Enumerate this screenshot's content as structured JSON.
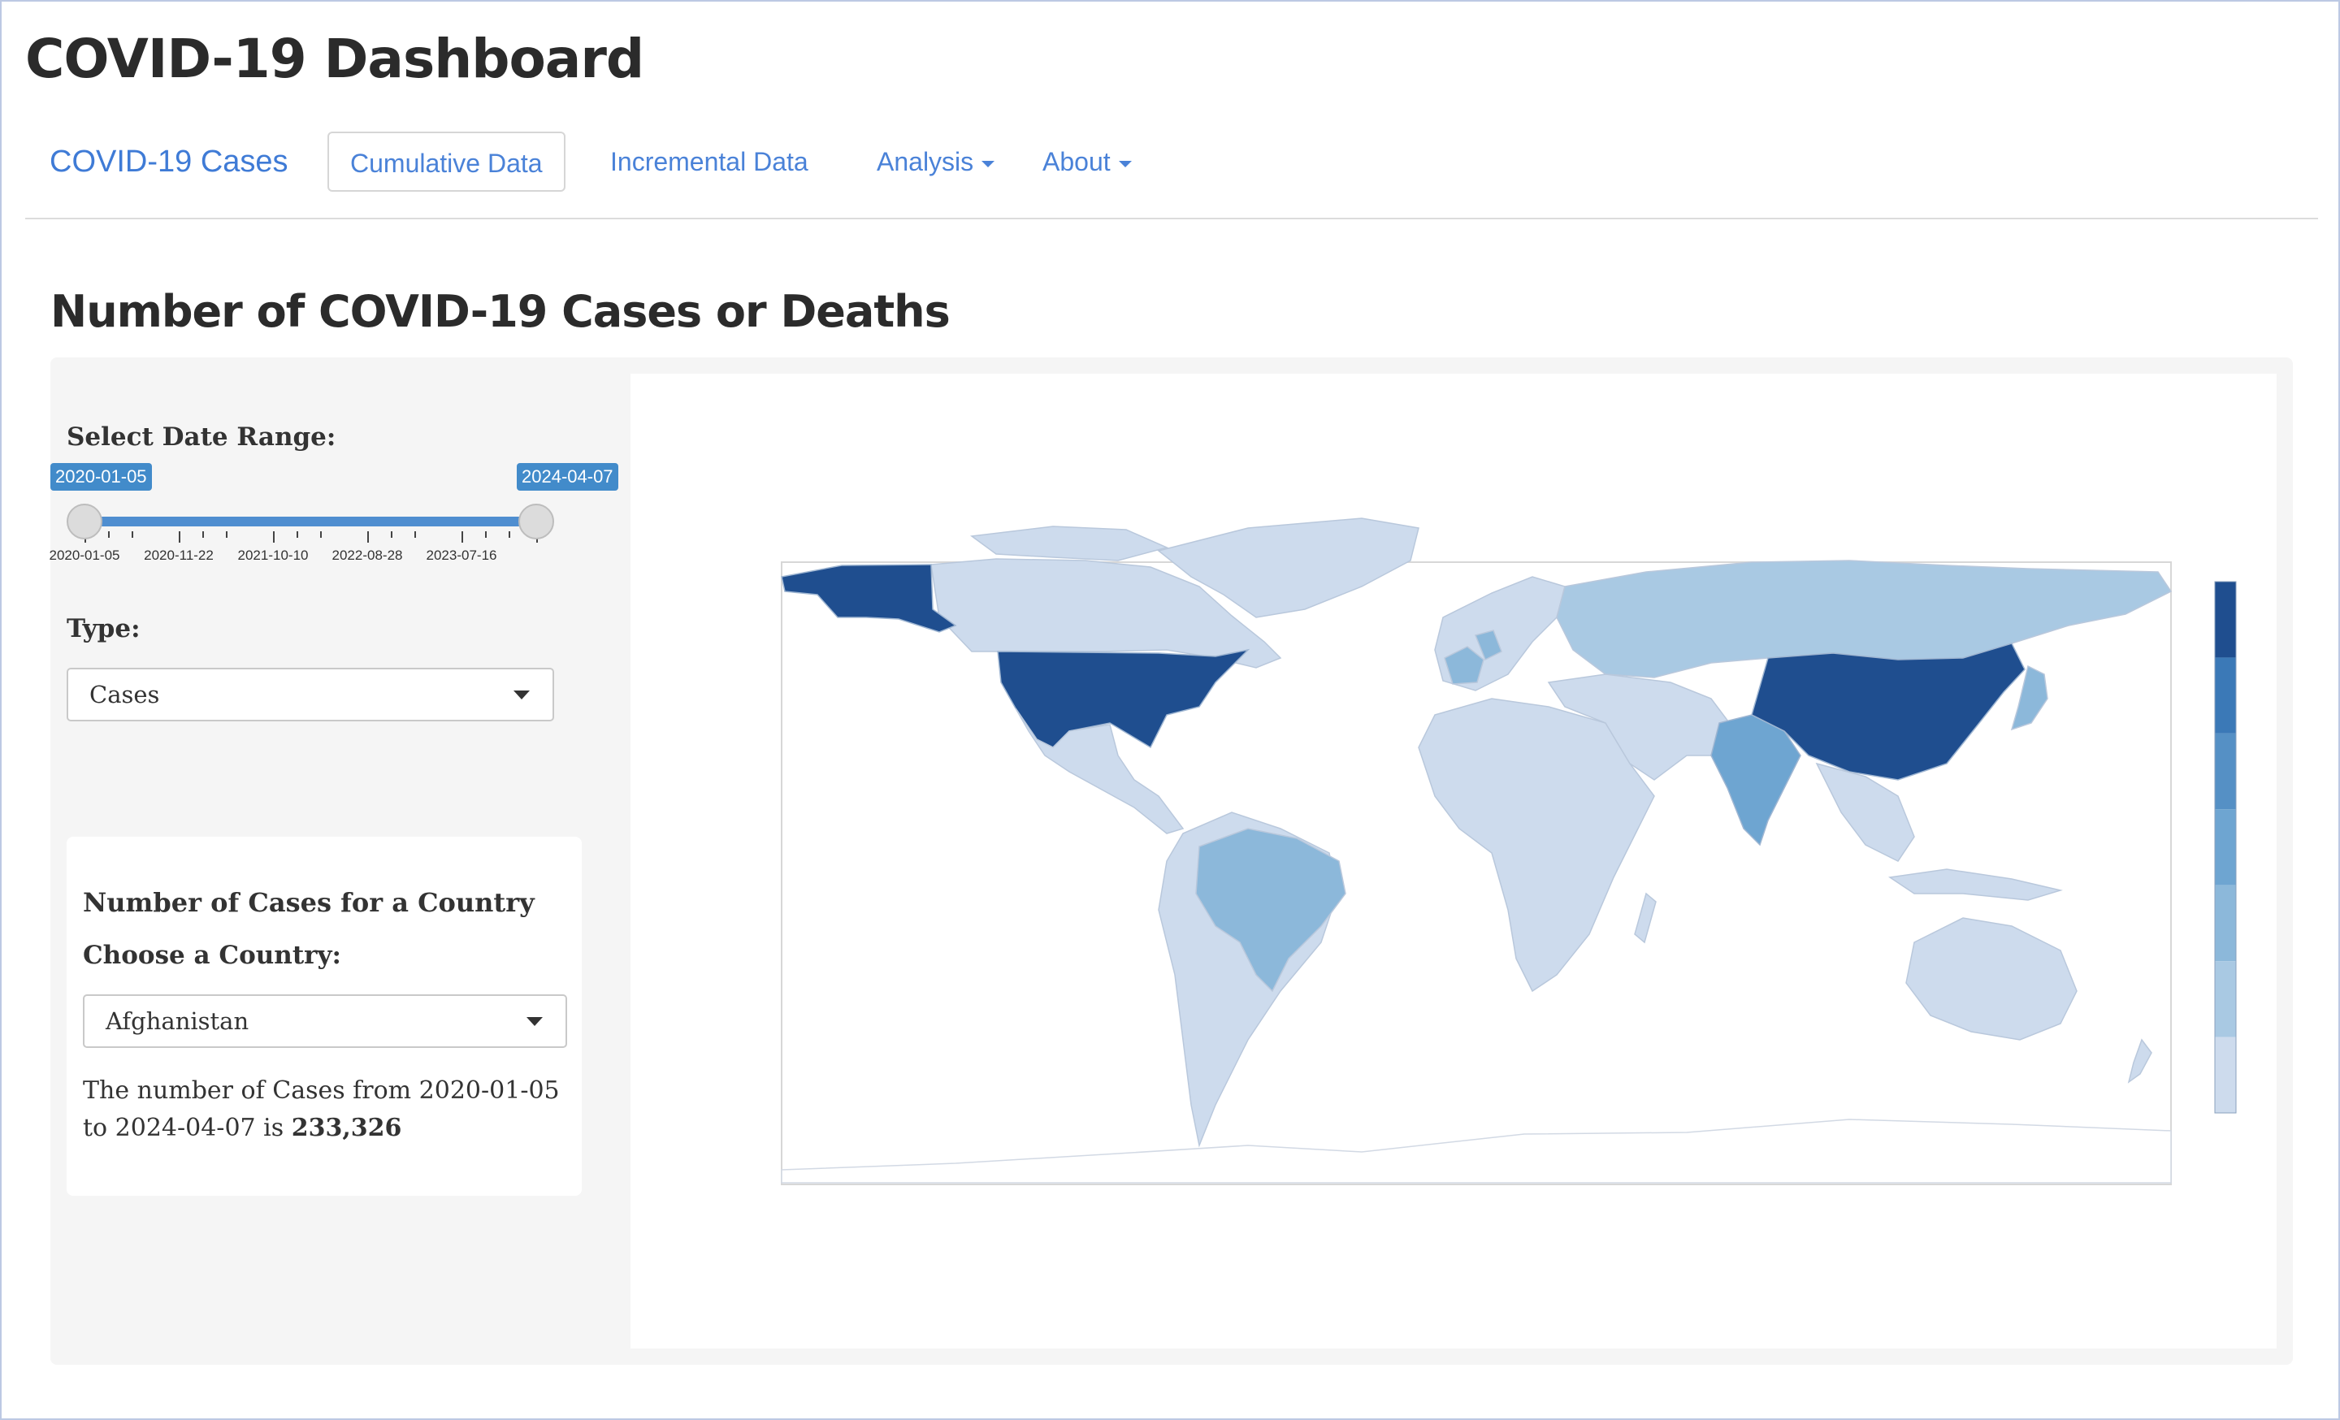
{
  "app": {
    "title": "COVID-19 Dashboard"
  },
  "navbar": {
    "brand": "COVID-19 Cases",
    "items": [
      {
        "label": "Cumulative Data",
        "active": true
      },
      {
        "label": "Incremental Data",
        "active": false
      },
      {
        "label": "Analysis",
        "dropdown": true
      },
      {
        "label": "About",
        "dropdown": true
      }
    ]
  },
  "page": {
    "heading": "Number of COVID-19 Cases or Deaths"
  },
  "sidebar": {
    "date_range_label": "Select Date Range:",
    "date_range": {
      "min": "2020-01-05",
      "max": "2024-04-07",
      "selected_from": "2020-01-05",
      "selected_to": "2024-04-07",
      "ticks": [
        "2020-01-05",
        "2020-11-22",
        "2021-10-10",
        "2022-08-28",
        "2023-07-16"
      ]
    },
    "type_label": "Type:",
    "type_value": "Cases",
    "country_panel": {
      "heading": "Number of Cases for a Country",
      "choose_label": "Choose a Country:",
      "country_value": "Afghanistan",
      "result_prefix": "The number of Cases from 2020-01-05 to 2024-04-07 is",
      "result_value": "233,326"
    }
  },
  "map": {
    "colorscale": [
      "#cddbed",
      "#a9c9e3",
      "#8cb8da",
      "#6ea5d1",
      "#5590c5",
      "#3b79b7",
      "#1f4e8f"
    ],
    "highlighted_countries": {
      "United States": 6,
      "China": 6,
      "India": 4,
      "Brazil": 3,
      "France": 3,
      "Germany": 3,
      "Russia": 1,
      "Japan": 3
    }
  }
}
